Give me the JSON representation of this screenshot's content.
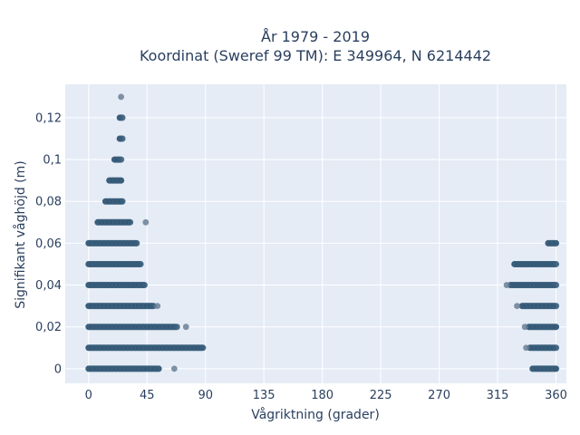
{
  "chart_data": {
    "type": "scatter",
    "title_line1": "År 1979 - 2019",
    "title_line2": "Koordinat (Sweref 99 TM): E 349964, N 6214442",
    "xlabel": "Vågriktning (grader)",
    "ylabel": "Signifikant våghöjd (m)",
    "xlim": [
      -18,
      368
    ],
    "ylim": [
      -0.007,
      0.136
    ],
    "x_ticks": [
      0,
      45,
      90,
      135,
      180,
      225,
      270,
      315,
      360
    ],
    "x_tick_labels": [
      "0",
      "45",
      "90",
      "135",
      "180",
      "225",
      "270",
      "315",
      "360"
    ],
    "y_ticks": [
      0,
      0.02,
      0.04,
      0.06,
      0.08,
      0.1,
      0.12
    ],
    "y_tick_labels": [
      "0",
      "0,02",
      "0,04",
      "0,06",
      "0,08",
      "0,1",
      "0,12"
    ],
    "grid": true,
    "legend": "none",
    "colors": {
      "background": "#e5ecf6",
      "grid": "#ffffff",
      "marker": "#2f5573",
      "marker_outlier": "#6b7f95",
      "text": "#2a3f5f"
    },
    "series": [
      {
        "bands": [
          {
            "y": 0.0,
            "x_from": 0,
            "x_to": 54
          },
          {
            "y": 0.01,
            "x_from": 0,
            "x_to": 88
          },
          {
            "y": 0.02,
            "x_from": 0,
            "x_to": 68
          },
          {
            "y": 0.03,
            "x_from": 0,
            "x_to": 50
          },
          {
            "y": 0.04,
            "x_from": 0,
            "x_to": 43
          },
          {
            "y": 0.05,
            "x_from": 0,
            "x_to": 40
          },
          {
            "y": 0.06,
            "x_from": 0,
            "x_to": 37
          },
          {
            "y": 0.07,
            "x_from": 7,
            "x_to": 32
          },
          {
            "y": 0.08,
            "x_from": 13,
            "x_to": 26
          },
          {
            "y": 0.09,
            "x_from": 16,
            "x_to": 25
          },
          {
            "y": 0.1,
            "x_from": 20,
            "x_to": 25
          },
          {
            "y": 0.11,
            "x_from": 24,
            "x_to": 26
          },
          {
            "y": 0.12,
            "x_from": 24,
            "x_to": 26
          },
          {
            "y": 0.0,
            "x_from": 342,
            "x_to": 360
          },
          {
            "y": 0.01,
            "x_from": 340,
            "x_to": 360
          },
          {
            "y": 0.02,
            "x_from": 339,
            "x_to": 360
          },
          {
            "y": 0.03,
            "x_from": 334,
            "x_to": 360
          },
          {
            "y": 0.04,
            "x_from": 325,
            "x_to": 360
          },
          {
            "y": 0.05,
            "x_from": 328,
            "x_to": 360
          },
          {
            "y": 0.06,
            "x_from": 354,
            "x_to": 360
          }
        ],
        "points": [
          {
            "x": 25,
            "y": 0.13
          },
          {
            "x": 66,
            "y": 0.0
          },
          {
            "x": 75,
            "y": 0.02
          },
          {
            "x": 53,
            "y": 0.03
          },
          {
            "x": 322,
            "y": 0.04
          },
          {
            "x": 330,
            "y": 0.03
          },
          {
            "x": 337,
            "y": 0.01
          },
          {
            "x": 336,
            "y": 0.02
          },
          {
            "x": 44,
            "y": 0.07
          }
        ]
      }
    ]
  }
}
